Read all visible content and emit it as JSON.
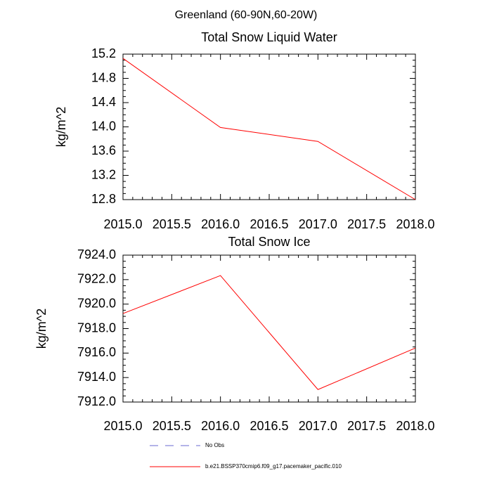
{
  "title": "Greenland (60-90N,60-20W)",
  "chart_data": [
    {
      "type": "line",
      "title": "Total Snow Liquid Water",
      "ylabel": "kg/m^2",
      "x": [
        2015,
        2016,
        2017,
        2018
      ],
      "series": [
        {
          "color": "#ff0000",
          "values": [
            15.13,
            13.99,
            13.76,
            12.8
          ]
        }
      ],
      "xlim": [
        2015,
        2018
      ],
      "xticks": [
        {
          "value": 2015,
          "label": "2015.0"
        },
        2015.5,
        {
          "value": 2016,
          "label": "2016.0"
        },
        2016.5,
        {
          "value": 2017,
          "label": "2017.0"
        },
        2017.5,
        {
          "value": 2018,
          "label": "2018.0"
        }
      ],
      "ylim": [
        12.8,
        15.2
      ],
      "yticks": [
        12.8,
        13.2,
        13.6,
        {
          "value": 14,
          "label": "14.0"
        },
        14.4,
        14.8,
        15.2
      ]
    },
    {
      "type": "line",
      "title": "Total Snow Ice",
      "ylabel": "kg/m^2",
      "x": [
        2015,
        2016,
        2017,
        2018
      ],
      "series": [
        {
          "color": "#ff0000",
          "values": [
            7919.23,
            7922.33,
            7913.02,
            7916.41
          ]
        }
      ],
      "xlim": [
        2015,
        2018
      ],
      "xticks": [
        {
          "value": 2015,
          "label": "2015.0"
        },
        2015.5,
        {
          "value": 2016,
          "label": "2016.0"
        },
        2016.5,
        {
          "value": 2017,
          "label": "2017.0"
        },
        2017.5,
        {
          "value": 2018,
          "label": "2018.0"
        }
      ],
      "ylim": [
        7912,
        7924
      ],
      "yticks": [
        {
          "value": 7912,
          "label": "7912.0"
        },
        {
          "value": 7914,
          "label": "7914.0"
        },
        {
          "value": 7916,
          "label": "7916.0"
        },
        {
          "value": 7918,
          "label": "7918.0"
        },
        {
          "value": 7920,
          "label": "7920.0"
        },
        {
          "value": 7922,
          "label": "7922.0"
        },
        {
          "value": 7924,
          "label": "7924.0"
        }
      ]
    }
  ],
  "legend": [
    {
      "label": "No Obs",
      "color": "#6a6ad0",
      "dashed": true
    },
    {
      "label": "b.e21.BSSP370cmip6.f09_g17.pacemaker_pacific.010",
      "color": "#ff0000",
      "dashed": false
    }
  ]
}
